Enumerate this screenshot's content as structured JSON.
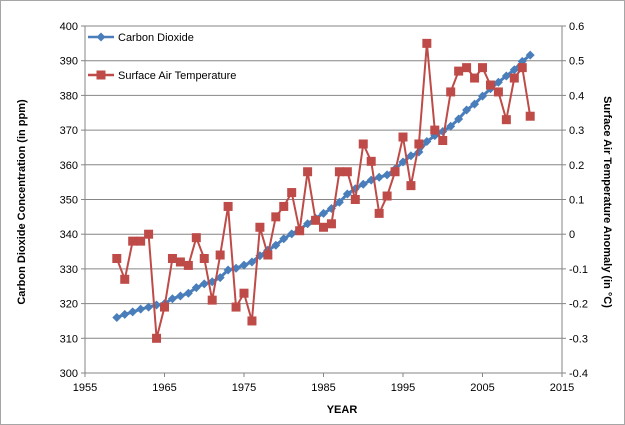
{
  "chart_data": {
    "type": "line",
    "xlabel": "YEAR",
    "ylabel_left": "Carbon Dioxide Concentration (in ppm)",
    "ylabel_right": "Surface Air Temperature Anomaly (in °C)",
    "xlim": [
      1955,
      2015
    ],
    "ylim_left": [
      300,
      400
    ],
    "ylim_right": [
      -0.4,
      0.6
    ],
    "x_ticks": [
      "1955",
      "1965",
      "1975",
      "1985",
      "1995",
      "2005",
      "2015"
    ],
    "y_ticks_left": [
      "300",
      "310",
      "320",
      "330",
      "340",
      "350",
      "360",
      "370",
      "380",
      "390",
      "400"
    ],
    "y_ticks_right": [
      "-0.4",
      "-0.3",
      "-0.2",
      "-0.1",
      "0",
      "0.1",
      "0.2",
      "0.3",
      "0.4",
      "0.5",
      "0.6"
    ],
    "grid": "horizontal",
    "legend_position": "top-left",
    "series": [
      {
        "name": "Carbon Dioxide",
        "axis": "left",
        "color": "#4a7ebb",
        "marker": "diamond",
        "x": [
          1959,
          1960,
          1961,
          1962,
          1963,
          1964,
          1965,
          1966,
          1967,
          1968,
          1969,
          1970,
          1971,
          1972,
          1973,
          1974,
          1975,
          1976,
          1977,
          1978,
          1979,
          1980,
          1981,
          1982,
          1983,
          1984,
          1985,
          1986,
          1987,
          1988,
          1989,
          1990,
          1991,
          1992,
          1993,
          1994,
          1995,
          1996,
          1997,
          1998,
          1999,
          2000,
          2001,
          2002,
          2003,
          2004,
          2005,
          2006,
          2007,
          2008,
          2009,
          2010,
          2011
        ],
        "values": [
          316.0,
          316.9,
          317.6,
          318.4,
          319.0,
          319.6,
          320.0,
          321.4,
          322.2,
          323.0,
          324.6,
          325.7,
          326.3,
          327.5,
          329.7,
          330.2,
          331.1,
          332.0,
          333.8,
          335.4,
          336.8,
          338.7,
          340.1,
          341.4,
          343.0,
          344.6,
          346.0,
          347.4,
          349.2,
          351.6,
          353.1,
          354.4,
          355.6,
          356.4,
          357.1,
          358.8,
          360.8,
          362.6,
          363.7,
          366.7,
          368.4,
          369.6,
          371.1,
          373.2,
          375.8,
          377.5,
          379.8,
          381.9,
          383.8,
          385.6,
          387.4,
          389.8,
          391.6
        ]
      },
      {
        "name": "Surface Air Temperature",
        "axis": "right",
        "color": "#be4b48",
        "marker": "square",
        "x": [
          1959,
          1960,
          1961,
          1962,
          1963,
          1964,
          1965,
          1966,
          1967,
          1968,
          1969,
          1970,
          1971,
          1972,
          1973,
          1974,
          1975,
          1976,
          1977,
          1978,
          1979,
          1980,
          1981,
          1982,
          1983,
          1984,
          1985,
          1986,
          1987,
          1988,
          1989,
          1990,
          1991,
          1992,
          1993,
          1994,
          1995,
          1996,
          1997,
          1998,
          1999,
          2000,
          2001,
          2002,
          2003,
          2004,
          2005,
          2006,
          2007,
          2008,
          2009,
          2010,
          2011
        ],
        "values": [
          -0.07,
          -0.13,
          -0.02,
          -0.02,
          0.0,
          -0.3,
          -0.21,
          -0.07,
          -0.08,
          -0.09,
          -0.01,
          -0.07,
          -0.19,
          -0.06,
          0.08,
          -0.21,
          -0.17,
          -0.25,
          0.02,
          -0.06,
          0.05,
          0.08,
          0.12,
          0.01,
          0.18,
          0.04,
          0.02,
          0.03,
          0.18,
          0.18,
          0.1,
          0.26,
          0.21,
          0.06,
          0.11,
          0.18,
          0.28,
          0.14,
          0.26,
          0.55,
          0.3,
          0.27,
          0.41,
          0.47,
          0.48,
          0.45,
          0.48,
          0.43,
          0.41,
          0.33,
          0.45,
          0.48,
          0.34
        ]
      }
    ]
  }
}
